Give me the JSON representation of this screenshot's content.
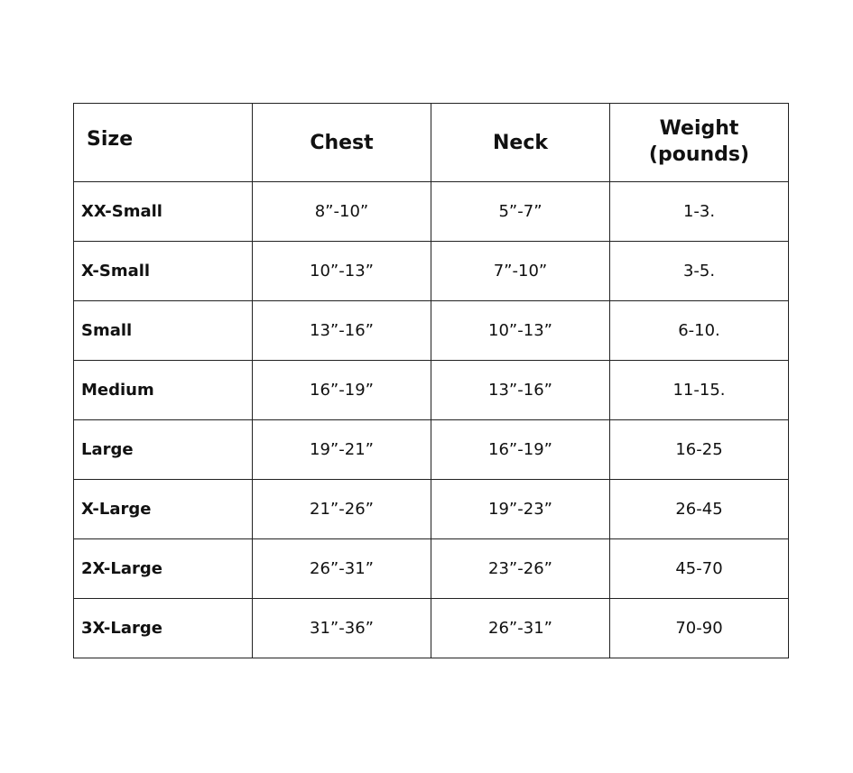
{
  "headers": {
    "size": "Size",
    "chest": "Chest",
    "neck": "Neck",
    "weight_line1": "Weight",
    "weight_line2": "(pounds)"
  },
  "rows": [
    {
      "size": "XX-Small",
      "chest": "8”-10”",
      "neck": "5”-7”",
      "weight": "1-3."
    },
    {
      "size": "X-Small",
      "chest": "10”-13”",
      "neck": "7”-10”",
      "weight": "3-5."
    },
    {
      "size": "Small",
      "chest": "13”-16”",
      "neck": "10”-13”",
      "weight": "6-10."
    },
    {
      "size": "Medium",
      "chest": "16”-19”",
      "neck": "13”-16”",
      "weight": "11-15."
    },
    {
      "size": "Large",
      "chest": "19”-21”",
      "neck": "16”-19”",
      "weight": "16-25"
    },
    {
      "size": "X-Large",
      "chest": "21”-26”",
      "neck": "19”-23”",
      "weight": "26-45"
    },
    {
      "size": "2X-Large",
      "chest": "26”-31”",
      "neck": "23”-26”",
      "weight": "45-70"
    },
    {
      "size": "3X-Large",
      "chest": "31”-36”",
      "neck": "26”-31”",
      "weight": "70-90"
    }
  ]
}
